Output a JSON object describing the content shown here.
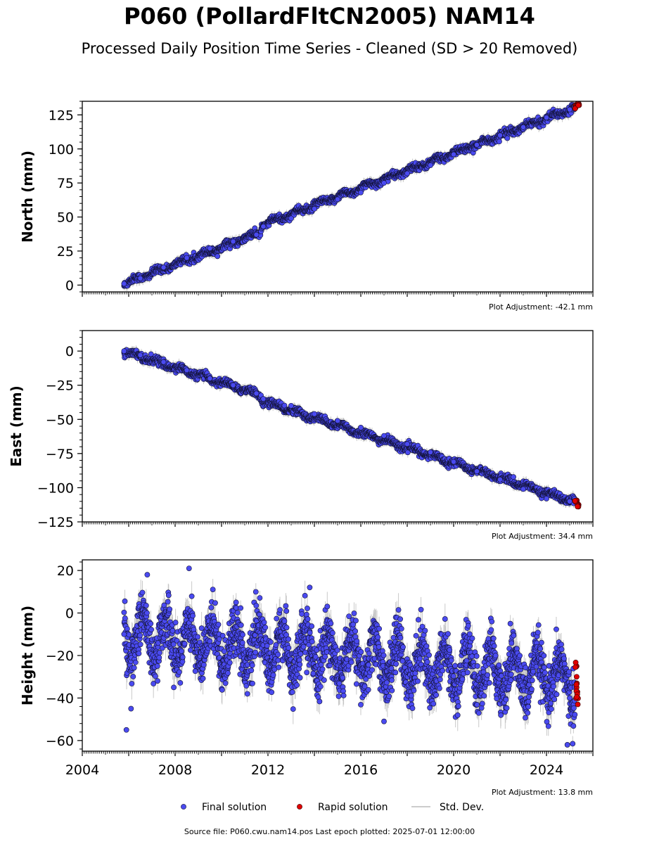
{
  "title": "P060 (PollardFltCN2005) NAM14",
  "subtitle": "Processed Daily Position Time Series - Cleaned (SD > 20 Removed)",
  "footer": "Source file: P060.cwu.nam14.pos  Last epoch plotted: 2025-07-01 12:00:00",
  "colors": {
    "final": "#4a4af0",
    "rapid": "#e00000",
    "stddev": "#bbbbbb"
  },
  "legend": {
    "final": "Final solution",
    "rapid": "Rapid solution",
    "stddev": "Std. Dev."
  },
  "chart_data": [
    {
      "type": "scatter",
      "ylabel": "North (mm)",
      "adjustment": "Plot Adjustment: -42.1 mm",
      "xlim": [
        2004,
        2026
      ],
      "ylim": [
        -5,
        135
      ],
      "yticks": [
        0,
        25,
        50,
        75,
        100,
        125
      ],
      "ytick_labels": [
        "0",
        "25",
        "50",
        "75",
        "100",
        "125"
      ],
      "grid": false,
      "trend": {
        "start_year": 2005.8,
        "end_year": 2025.35,
        "start_value": 1,
        "end_value": 131,
        "break_year": 2011.7,
        "break_offset": 5
      },
      "final_points": [
        {
          "x": 2005.8,
          "y": 1
        },
        {
          "x": 2006.5,
          "y": 5
        },
        {
          "x": 2007.5,
          "y": 13
        },
        {
          "x": 2008.5,
          "y": 20
        },
        {
          "x": 2009.5,
          "y": 27
        },
        {
          "x": 2010.5,
          "y": 32
        },
        {
          "x": 2011.5,
          "y": 37
        },
        {
          "x": 2011.8,
          "y": 43
        },
        {
          "x": 2013.0,
          "y": 49
        },
        {
          "x": 2014.0,
          "y": 56
        },
        {
          "x": 2015.0,
          "y": 63
        },
        {
          "x": 2016.0,
          "y": 68
        },
        {
          "x": 2017.0,
          "y": 75
        },
        {
          "x": 2018.0,
          "y": 82
        },
        {
          "x": 2019.0,
          "y": 88
        },
        {
          "x": 2020.0,
          "y": 96
        },
        {
          "x": 2021.0,
          "y": 103
        },
        {
          "x": 2022.0,
          "y": 110
        },
        {
          "x": 2023.0,
          "y": 116
        },
        {
          "x": 2024.0,
          "y": 123
        },
        {
          "x": 2025.0,
          "y": 129
        }
      ],
      "rapid_points": [
        {
          "x": 2025.3,
          "y": 132
        },
        {
          "x": 2025.35,
          "y": 133
        }
      ]
    },
    {
      "type": "scatter",
      "ylabel": "East (mm)",
      "adjustment": "Plot Adjustment: 34.4 mm",
      "xlim": [
        2004,
        2026
      ],
      "ylim": [
        -125,
        15
      ],
      "yticks": [
        0,
        -25,
        -50,
        -75,
        -100,
        -125
      ],
      "ytick_labels": [
        "0",
        "−25",
        "−50",
        "−75",
        "−100",
        "−125"
      ],
      "grid": false,
      "trend": {
        "start_year": 2005.8,
        "end_year": 2025.35,
        "start_value": 0,
        "end_value": -111,
        "break_year": 2011.7,
        "break_offset": -4
      },
      "final_points": [
        {
          "x": 2005.8,
          "y": 0
        },
        {
          "x": 2006.5,
          "y": -3
        },
        {
          "x": 2007.5,
          "y": -8
        },
        {
          "x": 2008.5,
          "y": -14
        },
        {
          "x": 2009.5,
          "y": -20
        },
        {
          "x": 2010.5,
          "y": -25
        },
        {
          "x": 2011.5,
          "y": -31
        },
        {
          "x": 2011.8,
          "y": -35
        },
        {
          "x": 2013.0,
          "y": -40
        },
        {
          "x": 2014.0,
          "y": -46
        },
        {
          "x": 2015.0,
          "y": -51
        },
        {
          "x": 2016.0,
          "y": -56
        },
        {
          "x": 2017.0,
          "y": -62
        },
        {
          "x": 2018.0,
          "y": -68
        },
        {
          "x": 2019.0,
          "y": -74
        },
        {
          "x": 2020.0,
          "y": -81
        },
        {
          "x": 2021.0,
          "y": -88
        },
        {
          "x": 2022.0,
          "y": -94
        },
        {
          "x": 2023.0,
          "y": -101
        },
        {
          "x": 2024.0,
          "y": -108
        },
        {
          "x": 2025.0,
          "y": -110
        }
      ],
      "rapid_points": [
        {
          "x": 2025.3,
          "y": -110
        },
        {
          "x": 2025.35,
          "y": -112
        }
      ]
    },
    {
      "type": "scatter",
      "ylabel": "Height (mm)",
      "adjustment": "Plot Adjustment: 13.8 mm",
      "xlabel": "",
      "xlim": [
        2004,
        2026
      ],
      "ylim": [
        -65,
        25
      ],
      "yticks": [
        20,
        0,
        -20,
        -40,
        -60
      ],
      "ytick_labels": [
        "20",
        "0",
        "−20",
        "−40",
        "−60"
      ],
      "xticks": [
        2004,
        2008,
        2012,
        2016,
        2020,
        2024
      ],
      "xtick_labels": [
        "2004",
        "2008",
        "2012",
        "2016",
        "2020",
        "2024"
      ],
      "grid": false,
      "seasonal": {
        "start_year": 2005.8,
        "end_year": 2025.35,
        "mean_start": -10,
        "mean_end": -32,
        "amplitude": 10,
        "noise": 6
      },
      "final_points": [
        {
          "x": 2005.8,
          "y": -10
        },
        {
          "x": 2006.8,
          "y": 18
        },
        {
          "x": 2008.6,
          "y": 21
        },
        {
          "x": 2005.9,
          "y": -55
        },
        {
          "x": 2006.1,
          "y": -45
        },
        {
          "x": 2017.0,
          "y": -51
        },
        {
          "x": 2024.9,
          "y": -62
        },
        {
          "x": 2013.8,
          "y": 12
        },
        {
          "x": 2025.0,
          "y": -40
        }
      ],
      "rapid_points": [
        {
          "x": 2025.3,
          "y": -25
        },
        {
          "x": 2025.3,
          "y": -30
        },
        {
          "x": 2025.3,
          "y": -35
        },
        {
          "x": 2025.35,
          "y": -43
        }
      ]
    }
  ]
}
